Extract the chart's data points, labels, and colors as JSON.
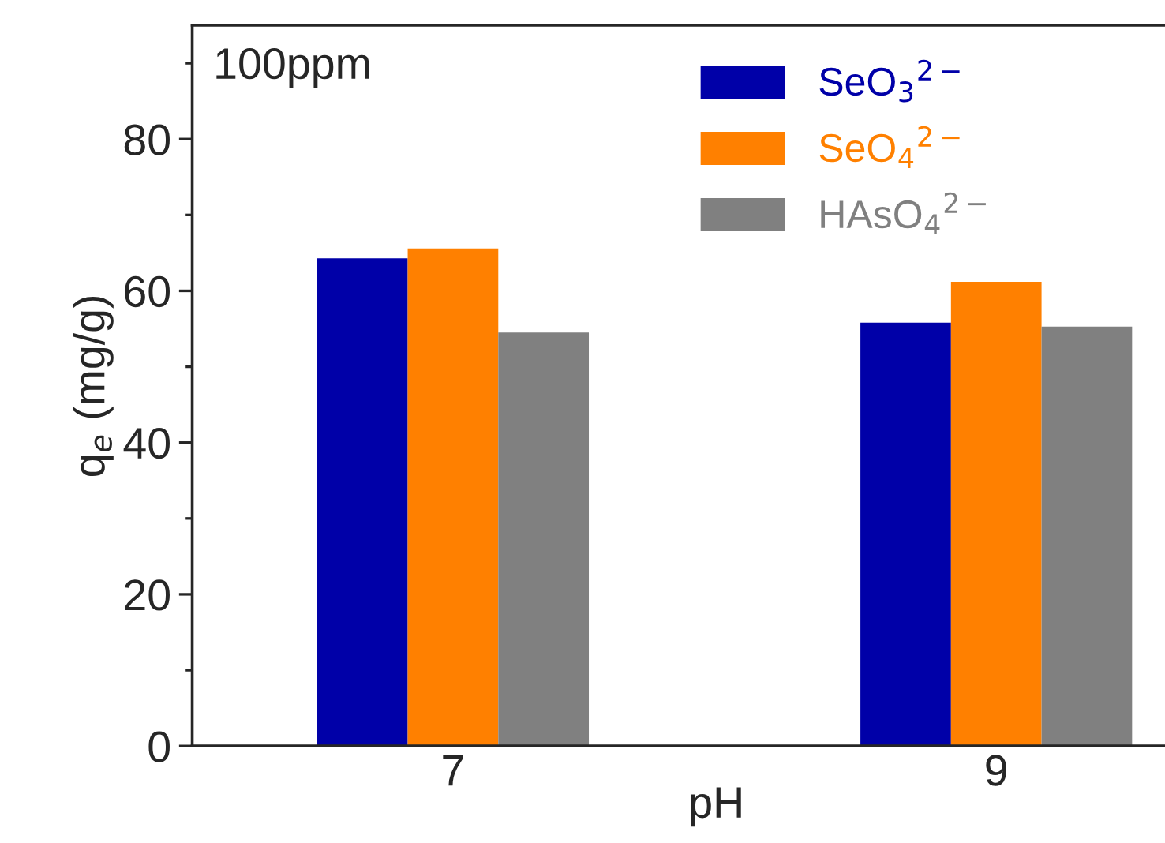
{
  "chart_data": {
    "type": "bar",
    "xlabel": "pH",
    "ylabel": "q$_{e}$ (mg/g)",
    "categories": [
      "7",
      "9"
    ],
    "series": [
      {
        "name": "SeO$_{3}$$^{2−}$",
        "color": "#0000a8",
        "values": [
          64.3,
          55.8
        ]
      },
      {
        "name": "SeO$_{4}$$^{2−}$",
        "color": "#ff8000",
        "values": [
          65.6,
          61.2
        ]
      },
      {
        "name": "HAsO$_{4}$$^{2−}$",
        "color": "#808080",
        "values": [
          54.5,
          55.3
        ]
      }
    ],
    "ylim": [
      0,
      95
    ],
    "yticks": [
      0,
      20,
      40,
      60,
      80
    ],
    "grid": false,
    "legend": "top right",
    "annotations": [
      "100ppm"
    ]
  }
}
